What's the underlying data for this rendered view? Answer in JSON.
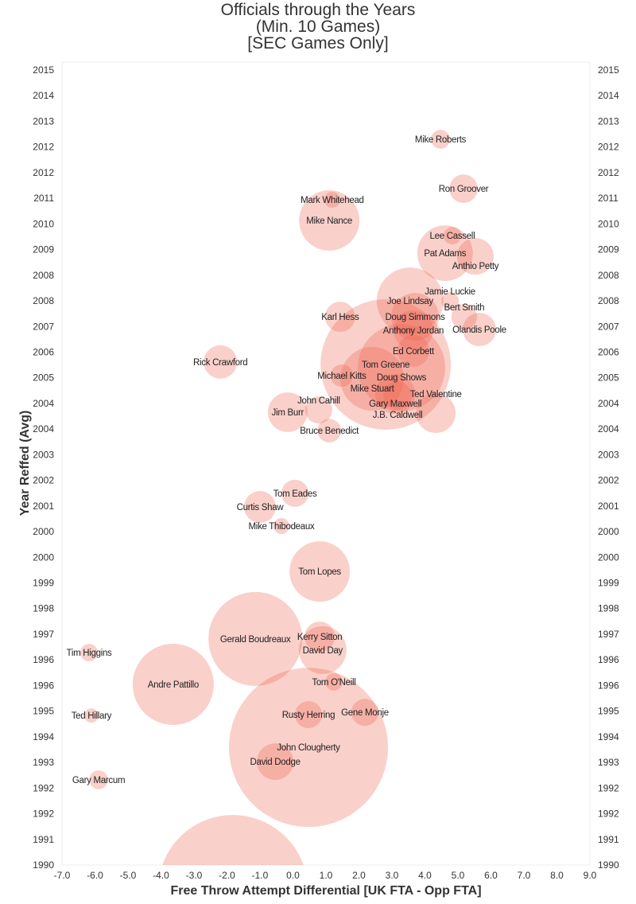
{
  "chart_data": {
    "type": "scatter",
    "variant": "bubble",
    "title_lines": [
      "Officials through the Years",
      "(Min. 10 Games)",
      "[SEC Games Only]"
    ],
    "xlabel": "Free Throw Attempt Differential [UK FTA - Opp FTA]",
    "ylabel": "Year Reffed (Avg)",
    "xlim": [
      -7,
      9
    ],
    "ylim": [
      1990,
      2015
    ],
    "x_ticks": [
      "-7.0",
      "-6.0",
      "-5.0",
      "-4.0",
      "-3.0",
      "-2.0",
      "-1.0",
      "0.0",
      "1.0",
      "2.0",
      "3.0",
      "4.0",
      "5.0",
      "6.0",
      "7.0",
      "8.0",
      "9.0"
    ],
    "y_ticks": [
      "1990",
      "1991",
      "1992",
      "1992",
      "1993",
      "1994",
      "1995",
      "1996",
      "1996",
      "1997",
      "1998",
      "1999",
      "2000",
      "2000",
      "2001",
      "2002",
      "2003",
      "2004",
      "2004",
      "2005",
      "2006",
      "2007",
      "2008",
      "2008",
      "2009",
      "2010",
      "2011",
      "2012",
      "2012",
      "2013",
      "2014",
      "2015"
    ],
    "grid": false,
    "bubble_color": "#f0644f",
    "points": [
      {
        "name": "Mike Roberts",
        "x": 4.47,
        "y": 2012.82,
        "bubble_size": 14
      },
      {
        "name": "Ron Groover",
        "x": 5.17,
        "y": 2011.27,
        "bubble_size": 32
      },
      {
        "name": "Mark Whitehead",
        "x": 1.19,
        "y": 2010.92,
        "bubble_size": 10
      },
      {
        "name": "Mike Nance",
        "x": 1.1,
        "y": 2010.27,
        "bubble_size": 144
      },
      {
        "name": "Lee Cassell",
        "x": 4.83,
        "y": 2009.79,
        "bubble_size": 12
      },
      {
        "name": "Pat Adams",
        "x": 4.61,
        "y": 2009.24,
        "bubble_size": 122
      },
      {
        "name": "Anthio Petty",
        "x": 5.53,
        "y": 2009.14,
        "bubble_size": 53
      },
      {
        "name": "Joe Lindsay",
        "x": 3.55,
        "y": 2007.74,
        "bubble_size": 176
      },
      {
        "name": "Jamie Luckie",
        "x": 4.76,
        "y": 2007.74,
        "bubble_size": 12
      },
      {
        "name": "Doug Simmons",
        "x": 3.7,
        "y": 2007.24,
        "bubble_size": 90
      },
      {
        "name": "Bert Smith",
        "x": 5.19,
        "y": 2007.24,
        "bubble_size": 26
      },
      {
        "name": "Karl Hess",
        "x": 1.43,
        "y": 2007.24,
        "bubble_size": 36
      },
      {
        "name": "Anthony Jordan",
        "x": 3.65,
        "y": 2006.82,
        "bubble_size": 62
      },
      {
        "name": "Olandis Poole",
        "x": 5.65,
        "y": 2006.84,
        "bubble_size": 44
      },
      {
        "name": "Ed Corbett",
        "x": 3.65,
        "y": 2006.17,
        "bubble_size": 40
      },
      {
        "name": "Rick Crawford",
        "x": -2.2,
        "y": 2005.82,
        "bubble_size": 44
      },
      {
        "name": "Tom Greene",
        "x": 2.81,
        "y": 2005.74,
        "bubble_size": 672
      },
      {
        "name": "Doug Shows",
        "x": 3.29,
        "y": 2005.64,
        "bubble_size": 302
      },
      {
        "name": "Michael Kitts",
        "x": 1.48,
        "y": 2005.39,
        "bubble_size": 20
      },
      {
        "name": "Mike Stuart",
        "x": 2.4,
        "y": 2005.29,
        "bubble_size": 160
      },
      {
        "name": "Gary Maxwell",
        "x": 3.1,
        "y": 2004.81,
        "bubble_size": 62
      },
      {
        "name": "J.B. Caldwell",
        "x": 3.17,
        "y": 2004.76,
        "bubble_size": 32
      },
      {
        "name": "Ted Valentine",
        "x": 4.33,
        "y": 2004.21,
        "bubble_size": 62
      },
      {
        "name": "Jim Burr",
        "x": -0.16,
        "y": 2004.24,
        "bubble_size": 62
      },
      {
        "name": "John Cahill",
        "x": 0.78,
        "y": 2004.31,
        "bubble_size": 29
      },
      {
        "name": "Bruce Benedict",
        "x": 1.1,
        "y": 2003.66,
        "bubble_size": 22
      },
      {
        "name": "Tom Eades",
        "x": 0.06,
        "y": 2001.69,
        "bubble_size": 29
      },
      {
        "name": "Curtis Shaw",
        "x": -1.0,
        "y": 2001.26,
        "bubble_size": 40
      },
      {
        "name": "Mike Thibodeaux",
        "x": -0.35,
        "y": 2000.66,
        "bubble_size": 10
      },
      {
        "name": "Tom Lopes",
        "x": 0.81,
        "y": 1999.23,
        "bubble_size": 144
      },
      {
        "name": "Gerald Boudreaux",
        "x": -1.14,
        "y": 1997.11,
        "bubble_size": 348
      },
      {
        "name": "Kerry Sitton",
        "x": 0.81,
        "y": 1997.18,
        "bubble_size": 36
      },
      {
        "name": "David Day",
        "x": 0.9,
        "y": 1996.76,
        "bubble_size": 90
      },
      {
        "name": "Tim Higgins",
        "x": -6.18,
        "y": 1996.68,
        "bubble_size": 12
      },
      {
        "name": "Andre Pattillo",
        "x": -3.63,
        "y": 1995.68,
        "bubble_size": 260
      },
      {
        "name": "Tom O'Neill",
        "x": 1.24,
        "y": 1995.76,
        "bubble_size": 12
      },
      {
        "name": "Ted Hillary",
        "x": -6.11,
        "y": 1994.7,
        "bubble_size": 8
      },
      {
        "name": "Gene Monje",
        "x": 2.18,
        "y": 1994.8,
        "bubble_size": 29
      },
      {
        "name": "Rusty Herring",
        "x": 0.47,
        "y": 1994.73,
        "bubble_size": 29
      },
      {
        "name": "John Clougherty",
        "x": 0.47,
        "y": 1993.7,
        "bubble_size": 1000
      },
      {
        "name": "David Dodge",
        "x": -0.54,
        "y": 1993.25,
        "bubble_size": 53
      },
      {
        "name": "Gary Marcum",
        "x": -5.89,
        "y": 1992.68,
        "bubble_size": 14
      },
      {
        "name": "",
        "x": -1.82,
        "y": 1989.22,
        "bubble_size": 884
      }
    ]
  }
}
